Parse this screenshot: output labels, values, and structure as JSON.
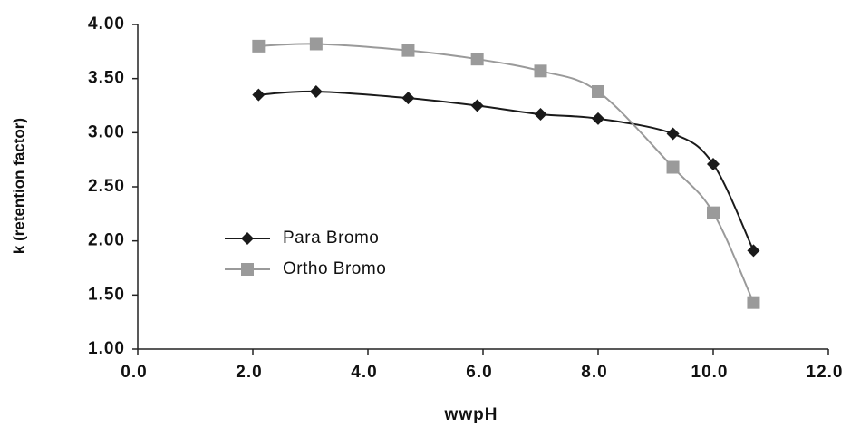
{
  "chart_data": {
    "type": "line",
    "x_label": "wwpH",
    "y_label": "k (retention factor)",
    "x": [
      2.1,
      3.1,
      4.7,
      5.9,
      7.0,
      8.0,
      9.3,
      10.0,
      10.7
    ],
    "series": [
      {
        "name": "Para Bromo",
        "color": "#1a1a1a",
        "marker": "diamond",
        "values": [
          3.35,
          3.38,
          3.32,
          3.25,
          3.17,
          3.13,
          2.99,
          2.71,
          1.91
        ]
      },
      {
        "name": "Ortho Bromo",
        "color": "#9a9a9a",
        "marker": "square",
        "values": [
          3.8,
          3.82,
          3.76,
          3.68,
          3.57,
          3.38,
          2.68,
          2.26,
          1.43
        ]
      }
    ],
    "xlim": [
      0,
      12
    ],
    "xticks": [
      {
        "value": 0,
        "label": "0.0"
      },
      {
        "value": 2,
        "label": "2.0"
      },
      {
        "value": 4,
        "label": "4.0"
      },
      {
        "value": 6,
        "label": "6.0"
      },
      {
        "value": 8,
        "label": "8.0"
      },
      {
        "value": 10,
        "label": "10.0"
      },
      {
        "value": 12,
        "label": "12.0"
      }
    ],
    "ylim": [
      1,
      4
    ],
    "yticks": [
      {
        "value": 1,
        "label": "1.00"
      },
      {
        "value": 1.5,
        "label": "1.50"
      },
      {
        "value": 2,
        "label": "2.00"
      },
      {
        "value": 2.5,
        "label": "2.50"
      },
      {
        "value": 3,
        "label": "3.00"
      },
      {
        "value": 3.5,
        "label": "3.50"
      },
      {
        "value": 4,
        "label": "4.00"
      }
    ],
    "grid": false,
    "legend": "left"
  }
}
